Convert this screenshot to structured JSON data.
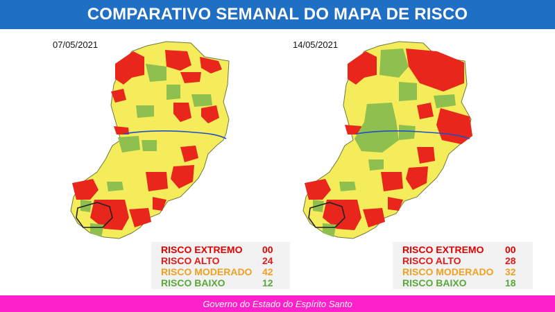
{
  "header": {
    "title": "COMPARATIVO SEMANAL DO MAPA DE RISCO"
  },
  "colors": {
    "header_bg": "#1f6fc5",
    "extremo": "#e00000",
    "alto": "#e31a1a",
    "moderado": "#f0a020",
    "baixo": "#5aa83a",
    "map_red": "#e8261b",
    "map_yellow": "#f4ec5a",
    "map_green": "#8fbf4e",
    "footer_bg": "#ff22cc"
  },
  "left": {
    "date": "07/05/2021",
    "legend": [
      {
        "label": "RISCO EXTREMO",
        "value": "00",
        "color": "#e00000"
      },
      {
        "label": "RISCO ALTO",
        "value": "24",
        "color": "#e31a1a"
      },
      {
        "label": "RISCO MODERADO",
        "value": "42",
        "color": "#f0a020"
      },
      {
        "label": "RISCO BAIXO",
        "value": "12",
        "color": "#5aa83a"
      }
    ]
  },
  "right": {
    "date": "14/05/2021",
    "legend": [
      {
        "label": "RISCO EXTREMO",
        "value": "00",
        "color": "#e00000"
      },
      {
        "label": "RISCO ALTO",
        "value": "28",
        "color": "#e31a1a"
      },
      {
        "label": "RISCO MODERADO",
        "value": "32",
        "color": "#f0a020"
      },
      {
        "label": "RISCO BAIXO",
        "value": "18",
        "color": "#5aa83a"
      }
    ]
  },
  "footer": {
    "text": "Governo do Estado do Espírito Santo"
  }
}
